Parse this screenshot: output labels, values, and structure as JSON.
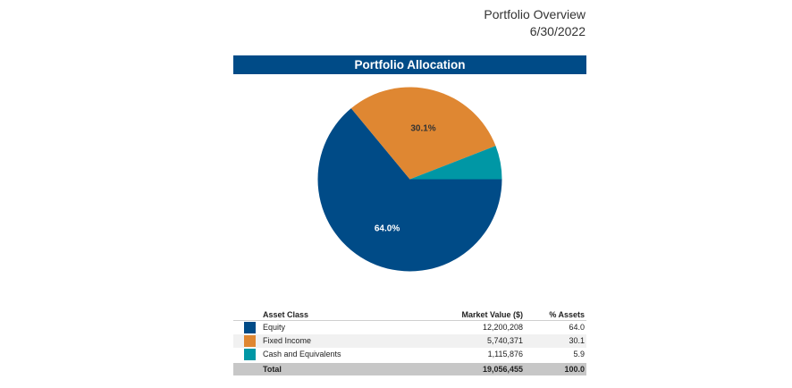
{
  "header": {
    "title": "Portfolio Overview",
    "date": "6/30/2022"
  },
  "banner": {
    "title": "Portfolio Allocation"
  },
  "chart_data": {
    "type": "pie",
    "title": "Portfolio Allocation",
    "slices": [
      {
        "name": "Equity",
        "value": 64.0,
        "label": "64.0%",
        "color": "#004b87"
      },
      {
        "name": "Fixed Income",
        "value": 30.1,
        "label": "30.1%",
        "color": "#df8732"
      },
      {
        "name": "Cash and Equivalents",
        "value": 5.9,
        "label": "",
        "color": "#0097a5"
      }
    ]
  },
  "table": {
    "headers": {
      "asset_class": "Asset Class",
      "market_value": "Market Value ($)",
      "pct_assets": "% Assets"
    },
    "rows": [
      {
        "name": "Equity",
        "market_value": "12,200,208",
        "pct": "64.0",
        "color": "#004b87"
      },
      {
        "name": "Fixed Income",
        "market_value": "5,740,371",
        "pct": "30.1",
        "color": "#df8732"
      },
      {
        "name": "Cash and Equivalents",
        "market_value": "1,115,876",
        "pct": "5.9",
        "color": "#0097a5"
      }
    ],
    "total": {
      "name": "Total",
      "market_value": "19,056,455",
      "pct": "100.0"
    }
  }
}
